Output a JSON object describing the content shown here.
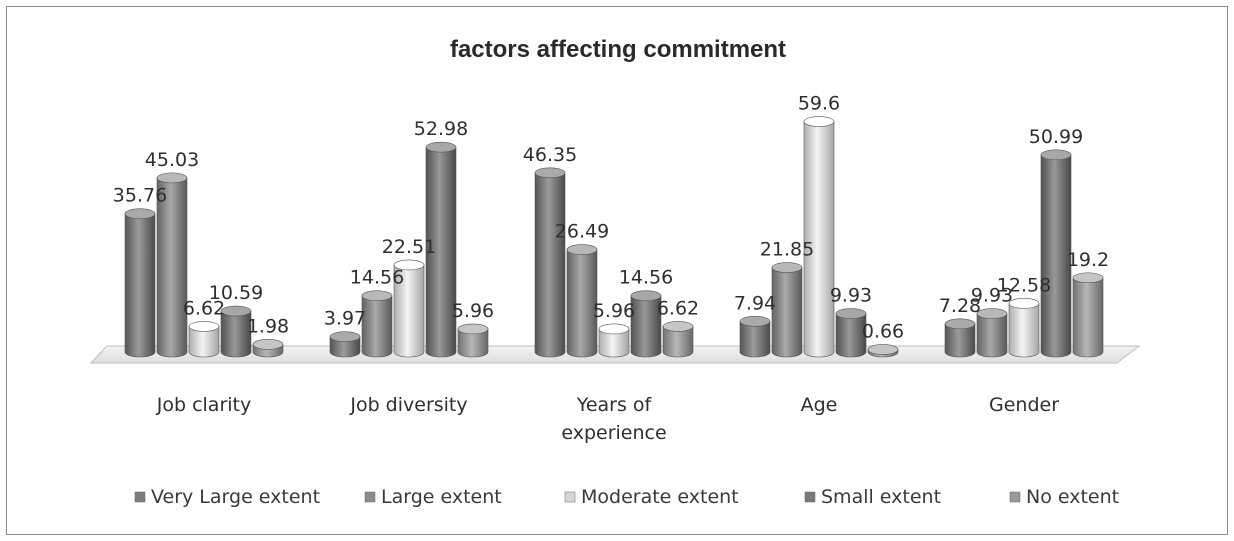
{
  "chart_data": {
    "type": "bar",
    "title": "factors affecting commitment",
    "categories": [
      "Job clarity",
      "Job diversity",
      "Years of experience",
      "Age",
      "Gender"
    ],
    "category_lines": [
      [
        "Job clarity"
      ],
      [
        "Job diversity"
      ],
      [
        "Years of",
        "experience"
      ],
      [
        "Age"
      ],
      [
        "Gender"
      ]
    ],
    "series": [
      {
        "name": "Very Large extent",
        "values": [
          35.76,
          3.97,
          46.35,
          7.94,
          7.28
        ]
      },
      {
        "name": "Large extent",
        "values": [
          45.03,
          14.56,
          26.49,
          21.85,
          9.93
        ]
      },
      {
        "name": "Moderate extent",
        "values": [
          6.62,
          22.51,
          5.96,
          59.6,
          12.58
        ]
      },
      {
        "name": "Small extent",
        "values": [
          10.59,
          52.98,
          14.56,
          9.93,
          50.99
        ]
      },
      {
        "name": "No extent",
        "values": [
          1.98,
          5.96,
          6.62,
          0.66,
          19.2
        ]
      }
    ],
    "series_colors": [
      "#7d7d7d",
      "#8b8b8b",
      "#d6d6d6",
      "#7a7a7a",
      "#999999"
    ],
    "ylim": [
      0,
      60
    ],
    "grid": false,
    "legend_position": "bottom",
    "style": "3d-cylinder"
  }
}
